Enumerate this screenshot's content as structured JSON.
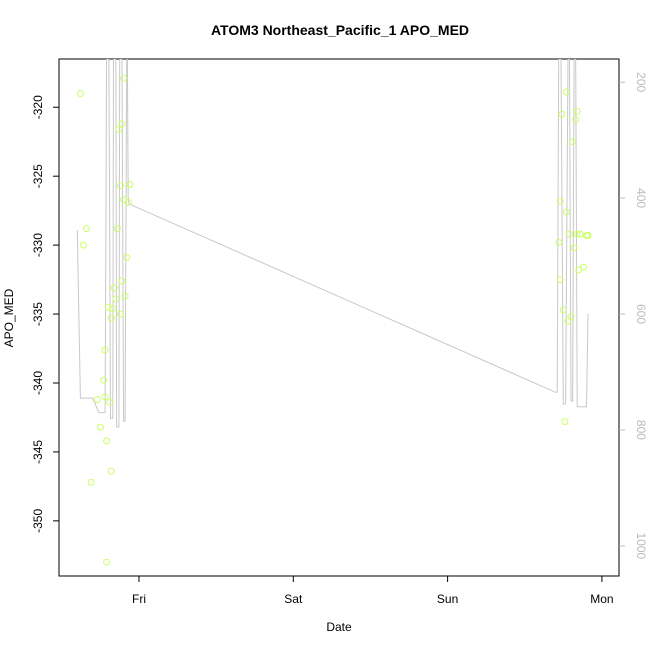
{
  "chart_data": {
    "type": "scatter",
    "title": "ATOM3 Northeast_Pacific_1 APO_MED",
    "xlabel": "Date",
    "ylabel": "APO_MED",
    "x_ticks": [
      "Fri",
      "Sat",
      "Sun",
      "Mon"
    ],
    "ylim": [
      -354,
      -316.5
    ],
    "y_ticks": [
      -320,
      -325,
      -330,
      -335,
      -340,
      -345,
      -350
    ],
    "y2lim": [
      1052,
      160
    ],
    "y2_ticks": [
      200,
      400,
      600,
      800,
      1000
    ],
    "grid": false,
    "colors": {
      "points": "#ccff66",
      "line": "#c8c8c8",
      "right_axis": "#bbbbbb",
      "frame": "#000000"
    },
    "series": [
      {
        "kind": "points",
        "axis": "left",
        "x_day": [
          -0.38,
          -0.36,
          -0.34,
          -0.31,
          -0.27,
          -0.25,
          -0.23,
          -0.22,
          -0.22,
          -0.21,
          -0.21,
          -0.2,
          -0.19,
          -0.18,
          -0.18,
          -0.17,
          -0.16,
          -0.15,
          -0.14,
          -0.13,
          -0.12,
          -0.12,
          -0.11,
          -0.11,
          -0.1,
          -0.1,
          -0.09,
          -0.08,
          -0.07,
          -0.06,
          -0.06,
          2.72,
          2.73,
          2.73,
          2.74,
          2.75,
          2.76,
          2.77,
          2.77,
          2.78,
          2.79,
          2.8,
          2.81,
          2.82,
          2.83,
          2.84,
          2.84,
          2.85,
          2.86,
          2.88,
          2.9,
          2.91,
          2.91
        ],
        "y": [
          -319,
          -330,
          -328.8,
          -347.2,
          -341.2,
          -343.2,
          -339.8,
          -337.6,
          -341,
          -344.2,
          -353,
          -334.5,
          -341.4,
          -346.4,
          -335.3,
          -334.6,
          -333.1,
          -333.9,
          -328.8,
          -321.6,
          -325.7,
          -335.0,
          -332.6,
          -321.2,
          -317.9,
          -326.7,
          -333.7,
          -330.9,
          -326.9,
          -325.6,
          -325.6,
          -329.8,
          -332.5,
          -326.8,
          -320.5,
          -334.7,
          -342.8,
          -327.6,
          -318.9,
          -335.5,
          -329.2,
          -335.2,
          -322.5,
          -330.2,
          -320.9,
          -320.3,
          -329.2,
          -331.8,
          -329.2,
          -331.6,
          -329.3,
          -329.3,
          -329.3
        ]
      },
      {
        "kind": "line",
        "axis": "right",
        "x_day": [
          -0.4,
          -0.38,
          -0.36,
          -0.3,
          -0.26,
          -0.22,
          -0.21,
          -0.195,
          -0.185,
          -0.17,
          -0.165,
          -0.15,
          -0.145,
          -0.13,
          -0.125,
          -0.11,
          -0.1,
          -0.09,
          -0.08,
          -0.075,
          -0.07,
          -0.065,
          2.7,
          2.71,
          2.72,
          2.735,
          2.75,
          2.765,
          2.78,
          2.79,
          2.8,
          2.81,
          2.82,
          2.83,
          2.84,
          2.85,
          2.88,
          2.9,
          2.91
        ],
        "y": [
          455,
          745,
          745,
          745,
          770,
          770,
          160,
          160,
          780,
          780,
          160,
          160,
          795,
          795,
          160,
          160,
          785,
          785,
          160,
          160,
          400,
          410,
          735,
          735,
          160,
          160,
          755,
          755,
          160,
          160,
          750,
          750,
          160,
          160,
          760,
          760,
          760,
          760,
          600
        ]
      }
    ]
  }
}
